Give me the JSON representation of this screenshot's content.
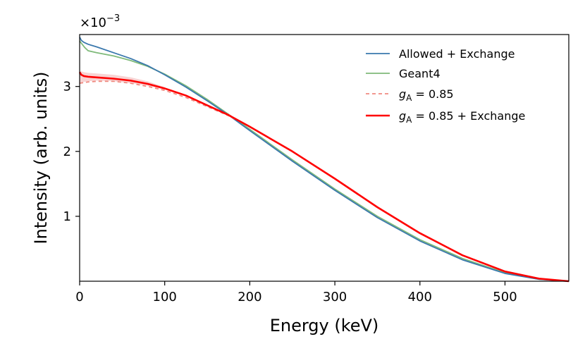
{
  "chart_data": {
    "type": "line",
    "xlabel": "Energy (keV)",
    "ylabel": "Intensity (arb. units)",
    "scale_base": "×10",
    "scale_exponent": "−3",
    "xlim": [
      0,
      575
    ],
    "ylim": [
      0,
      3.8
    ],
    "x_ticks": [
      {
        "value": 0,
        "label": "0"
      },
      {
        "value": 100,
        "label": "100"
      },
      {
        "value": 200,
        "label": "200"
      },
      {
        "value": 300,
        "label": "300"
      },
      {
        "value": 400,
        "label": "400"
      },
      {
        "value": 500,
        "label": "500"
      }
    ],
    "y_ticks": [
      {
        "value": 1,
        "label": "1"
      },
      {
        "value": 2,
        "label": "2"
      },
      {
        "value": 3,
        "label": "3"
      }
    ],
    "grid": false,
    "legend_position": "top-right",
    "series": [
      {
        "name": "Allowed + Exchange",
        "label_main": "Allowed + Exchange",
        "label_suffix": "",
        "color": "#3a78ad",
        "style": "solid",
        "x": [
          0,
          2,
          5,
          10,
          20,
          40,
          60,
          80,
          100,
          125,
          150,
          175,
          200,
          250,
          300,
          350,
          400,
          450,
          500,
          540,
          575
        ],
        "y": [
          3.76,
          3.71,
          3.68,
          3.65,
          3.61,
          3.52,
          3.43,
          3.32,
          3.18,
          2.99,
          2.78,
          2.56,
          2.32,
          1.85,
          1.4,
          0.98,
          0.62,
          0.33,
          0.12,
          0.03,
          0.0
        ]
      },
      {
        "name": "Geant4",
        "label_main": "Geant4",
        "label_suffix": "",
        "color": "#7fba7a",
        "style": "solid",
        "x": [
          0,
          3,
          6,
          10,
          20,
          40,
          60,
          80,
          100,
          125,
          150,
          175,
          200,
          250,
          300,
          350,
          400,
          450,
          500,
          540,
          575
        ],
        "y": [
          3.7,
          3.65,
          3.6,
          3.55,
          3.52,
          3.47,
          3.4,
          3.31,
          3.19,
          3.01,
          2.8,
          2.57,
          2.34,
          1.87,
          1.42,
          1.0,
          0.64,
          0.35,
          0.13,
          0.03,
          0.0
        ]
      },
      {
        "name": "gA = 0.85",
        "label_main": "= 0.85",
        "label_suffix": "",
        "color": "#f08a80",
        "style": "dashed",
        "x": [
          0,
          5,
          10,
          20,
          40,
          60,
          80,
          100,
          125,
          150,
          175,
          200,
          250,
          300,
          350,
          400,
          450,
          500,
          540,
          575
        ],
        "y": [
          3.05,
          3.06,
          3.07,
          3.08,
          3.08,
          3.05,
          3.0,
          2.94,
          2.83,
          2.69,
          2.55,
          2.38,
          2.0,
          1.58,
          1.14,
          0.74,
          0.4,
          0.15,
          0.04,
          0.0
        ]
      },
      {
        "name": "gA = 0.85 + Exchange",
        "label_main": "= 0.85 + Exchange",
        "label_suffix": "",
        "color": "#ff0000",
        "style": "solid",
        "x": [
          0,
          2,
          5,
          10,
          20,
          40,
          60,
          80,
          100,
          125,
          150,
          175,
          200,
          250,
          300,
          350,
          400,
          450,
          500,
          540,
          575
        ],
        "y": [
          3.22,
          3.18,
          3.16,
          3.15,
          3.14,
          3.12,
          3.09,
          3.04,
          2.97,
          2.86,
          2.71,
          2.56,
          2.38,
          2.0,
          1.58,
          1.14,
          0.74,
          0.4,
          0.15,
          0.04,
          0.0
        ]
      }
    ],
    "band": {
      "name": "gA = 0.85 + Exchange uncertainty",
      "color": "#f4b6b6",
      "x": [
        0,
        5,
        10,
        20,
        40,
        60,
        80,
        100
      ],
      "y_low": [
        3.05,
        3.07,
        3.08,
        3.09,
        3.08,
        3.05,
        3.01,
        2.95
      ],
      "y_high": [
        3.24,
        3.22,
        3.21,
        3.2,
        3.18,
        3.14,
        3.08,
        2.99
      ]
    },
    "legend_symbol_main": "g",
    "legend_symbol_sub": "A"
  }
}
